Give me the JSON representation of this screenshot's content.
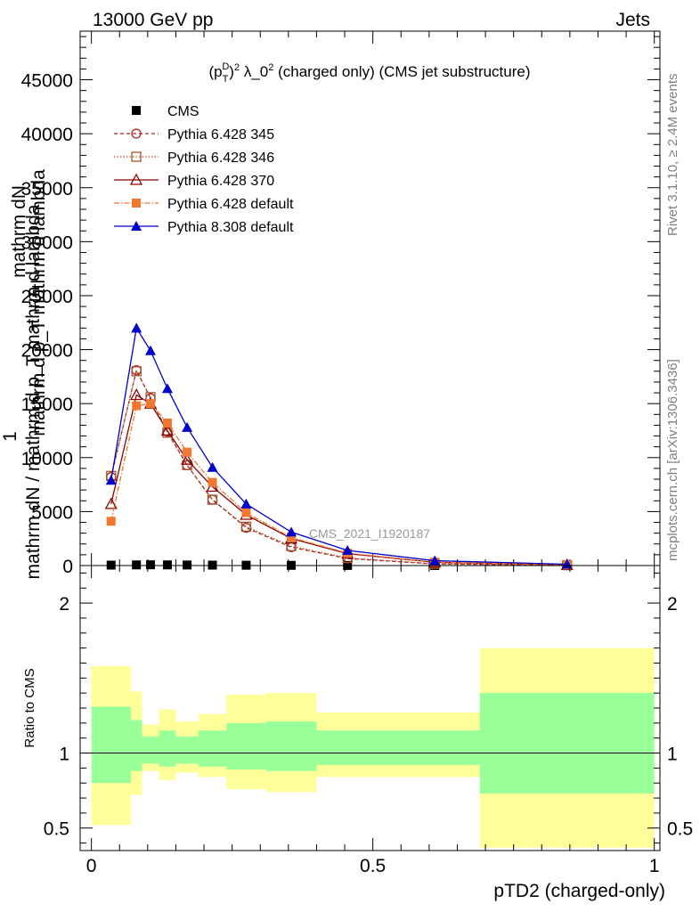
{
  "header": {
    "left": "13000 GeV pp",
    "right": "Jets"
  },
  "side_text": {
    "rivet": "Rivet 3.1.10, ≥ 2.4M events",
    "mcplots": "mcplots.cern.ch [arXiv:1306.3436]"
  },
  "watermark": "CMS_2021_I1920187",
  "ylabel_main": {
    "line1": "mathrm dN",
    "line2": "mathrm d p_T mathrm d lambda",
    "line3": "1",
    "line4": "mathrm dN / mathrm d p_T mathrm d lambda"
  },
  "chart_data": [
    {
      "type": "line",
      "title": "(p_T^D)^2 λ_0^2 (charged only) (CMS jet substructure)",
      "title_parts": {
        "p": "(p",
        "d": "D",
        "t": "T",
        "paren": ")",
        "sup2": "2",
        "lam": " λ_0",
        "rest": " (charged only) (CMS jet substructure)"
      },
      "xlim": [
        -0.02,
        1.01
      ],
      "ylim": [
        0,
        49500
      ],
      "yticks": [
        0,
        5000,
        10000,
        15000,
        20000,
        25000,
        30000,
        35000,
        40000,
        45000
      ],
      "ytick_labels": [
        "0",
        "5000",
        "10000",
        "15000",
        "20000",
        "25000",
        "30000",
        "35000",
        "40000",
        "45000"
      ],
      "legend_position": "top-left",
      "series": [
        {
          "name": "CMS",
          "color": "#000000",
          "marker": "square-filled",
          "dash": "none",
          "x": [
            0.035,
            0.08,
            0.105,
            0.135,
            0.17,
            0.215,
            0.275,
            0.355,
            0.455,
            0.61,
            0.845
          ],
          "y": [
            40,
            60,
            70,
            60,
            50,
            40,
            30,
            20,
            10,
            5,
            2
          ]
        },
        {
          "name": "Pythia 6.428 345",
          "color": "#b22222",
          "marker": "circle-open",
          "dash": "4,3",
          "x": [
            0.035,
            0.08,
            0.105,
            0.135,
            0.17,
            0.215,
            0.275,
            0.355,
            0.455,
            0.61,
            0.845
          ],
          "y": [
            8200,
            18100,
            15500,
            12400,
            9300,
            6100,
            3500,
            1700,
            650,
            150,
            30
          ]
        },
        {
          "name": "Pythia 6.428 346",
          "color": "#a0522d",
          "marker": "square-open",
          "dash": "1.5,2",
          "x": [
            0.035,
            0.08,
            0.105,
            0.135,
            0.17,
            0.215,
            0.275,
            0.355,
            0.455,
            0.61,
            0.845
          ],
          "y": [
            8300,
            18000,
            15600,
            12300,
            9300,
            6100,
            3600,
            1800,
            700,
            160,
            35
          ]
        },
        {
          "name": "Pythia 6.428 370",
          "color": "#8b0000",
          "marker": "triangle-open",
          "dash": "none",
          "x": [
            0.035,
            0.08,
            0.105,
            0.135,
            0.17,
            0.215,
            0.275,
            0.355,
            0.455,
            0.61,
            0.845
          ],
          "y": [
            5700,
            15800,
            15000,
            12500,
            9800,
            7300,
            4700,
            2500,
            1100,
            300,
            60
          ]
        },
        {
          "name": "Pythia 6.428 default",
          "color": "#f07830",
          "marker": "square-filled",
          "dash": "6,2,1.5,2",
          "x": [
            0.035,
            0.08,
            0.105,
            0.135,
            0.17,
            0.215,
            0.275,
            0.355,
            0.455,
            0.61,
            0.845
          ],
          "y": [
            4100,
            14800,
            15000,
            13200,
            10500,
            7700,
            4900,
            2600,
            1150,
            320,
            60
          ]
        },
        {
          "name": "Pythia 8.308 default",
          "color": "#0000cc",
          "marker": "triangle-filled",
          "dash": "none",
          "x": [
            0.035,
            0.08,
            0.105,
            0.135,
            0.17,
            0.215,
            0.275,
            0.355,
            0.455,
            0.61,
            0.845
          ],
          "y": [
            7900,
            22000,
            19900,
            16400,
            12800,
            9100,
            5700,
            3100,
            1400,
            450,
            120
          ]
        }
      ]
    },
    {
      "type": "area",
      "ylabel": "Ratio to CMS",
      "xlabel": "pTD2 (charged-only)",
      "xlim": [
        -0.02,
        1.01
      ],
      "ylim": [
        0.35,
        2.25
      ],
      "xticks": [
        0,
        0.5,
        1
      ],
      "xtick_labels": [
        "0",
        "0.5",
        "1"
      ],
      "yticks": [
        0.5,
        1,
        2
      ],
      "ytick_labels": [
        "0.5",
        "1",
        "2"
      ],
      "reference_line": 1,
      "bands": {
        "bins": [
          [
            0,
            0.07
          ],
          [
            0.07,
            0.09
          ],
          [
            0.09,
            0.12
          ],
          [
            0.12,
            0.15
          ],
          [
            0.15,
            0.19
          ],
          [
            0.19,
            0.24
          ],
          [
            0.24,
            0.31
          ],
          [
            0.31,
            0.4
          ],
          [
            0.4,
            0.52
          ],
          [
            0.52,
            0.69
          ],
          [
            0.69,
            1.0
          ]
        ],
        "yellow": {
          "color": "#ffff99",
          "lower": [
            0.52,
            0.72,
            0.88,
            0.82,
            0.87,
            0.84,
            0.76,
            0.74,
            0.84,
            0.84,
            0.37
          ],
          "upper": [
            1.58,
            1.41,
            1.19,
            1.29,
            1.21,
            1.26,
            1.39,
            1.4,
            1.27,
            1.27,
            1.7
          ]
        },
        "green": {
          "color": "#99ff99",
          "lower": [
            0.8,
            0.88,
            0.93,
            0.91,
            0.93,
            0.91,
            0.89,
            0.88,
            0.92,
            0.92,
            0.73
          ],
          "upper": [
            1.31,
            1.22,
            1.11,
            1.15,
            1.11,
            1.15,
            1.2,
            1.21,
            1.15,
            1.15,
            1.4
          ]
        }
      }
    }
  ]
}
